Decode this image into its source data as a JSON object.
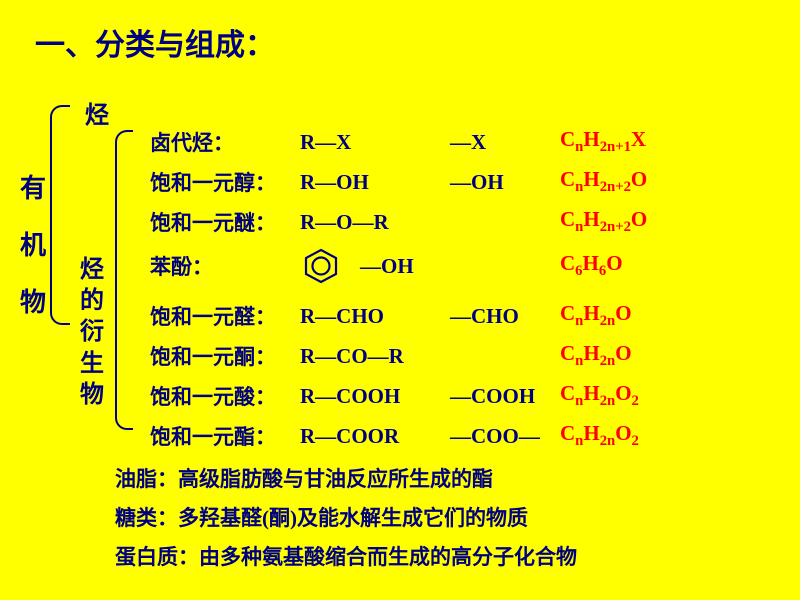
{
  "title": "一、分类与组成：",
  "left_label": [
    "有",
    "机",
    "物"
  ],
  "sub1": "烃",
  "sub2": [
    "烃",
    "的",
    "衍",
    "生",
    "物"
  ],
  "rows": [
    {
      "label": "卤代烃：",
      "structure": "R—X",
      "group": "—X",
      "formula": "C<sub>n</sub>H<sub>2n+1</sub>X"
    },
    {
      "label": "饱和一元醇：",
      "structure": "R—OH",
      "group": "—OH",
      "formula": "C<sub>n</sub>H<sub>2n+2</sub>O"
    },
    {
      "label": "饱和一元醚：",
      "structure": "R—O—R",
      "group": "",
      "formula": "C<sub>n</sub>H<sub>2n+2</sub>O"
    },
    {
      "label": "苯酚：",
      "structure": "BENZENE",
      "group": "—OH",
      "formula": "C<sub>6</sub>H<sub>6</sub>O"
    },
    {
      "label": "饱和一元醛：",
      "structure": "R—CHO",
      "group": "—CHO",
      "formula": "C<sub>n</sub>H<sub>2n</sub>O"
    },
    {
      "label": "饱和一元酮：",
      "structure": "R—CO—R",
      "group": "",
      "formula": "C<sub>n</sub>H<sub>2n</sub>O"
    },
    {
      "label": "饱和一元酸：",
      "structure": "R—COOH",
      "group": "—COOH",
      "formula": "C<sub>n</sub>H<sub>2n</sub>O<sub>2</sub>"
    },
    {
      "label": "饱和一元酯：",
      "structure": "R—COOR",
      "group": "—COO—",
      "formula": "C<sub>n</sub>H<sub>2n</sub>O<sub>2</sub>"
    }
  ],
  "notes": [
    "油脂：高级脂肪酸与甘油反应所生成的酯",
    "糖类：多羟基醛(酮)及能水解生成它们的物质",
    "蛋白质：由多种氨基酸缩合而生成的高分子化合物"
  ],
  "colors": {
    "bg": "#ffff00",
    "text": "#000080",
    "formula": "#ff0000"
  }
}
